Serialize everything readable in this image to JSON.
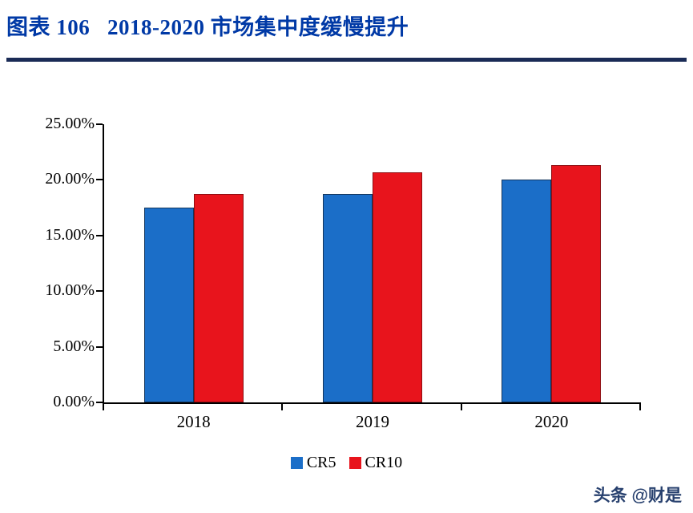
{
  "header": {
    "title": "图表 106   2018-2020 市场集中度缓慢提升"
  },
  "watermark": {
    "text": "头条 @财是"
  },
  "colors": {
    "title_blue": "#0039a6",
    "rule_navy": "#1a2b56",
    "cr5_blue": "#1b6ec8",
    "cr10_red": "#e8141c",
    "axis_black": "#000000"
  },
  "chart_data": {
    "type": "bar",
    "title": "",
    "xlabel": "",
    "ylabel": "",
    "categories": [
      "2018",
      "2019",
      "2020"
    ],
    "series": [
      {
        "name": "CR5",
        "color": "#1b6ec8",
        "border": "#14365c",
        "values": [
          17.5,
          18.7,
          20.0
        ]
      },
      {
        "name": "CR10",
        "color": "#e8141c",
        "border": "#8f0d11",
        "values": [
          18.7,
          20.7,
          21.3
        ]
      }
    ],
    "ylim": [
      0,
      25
    ],
    "ytick_step": 5,
    "ytick_labels": [
      "0.00%",
      "5.00%",
      "10.00%",
      "15.00%",
      "20.00%",
      "25.00%"
    ],
    "grid": false,
    "legend_position": "bottom"
  }
}
